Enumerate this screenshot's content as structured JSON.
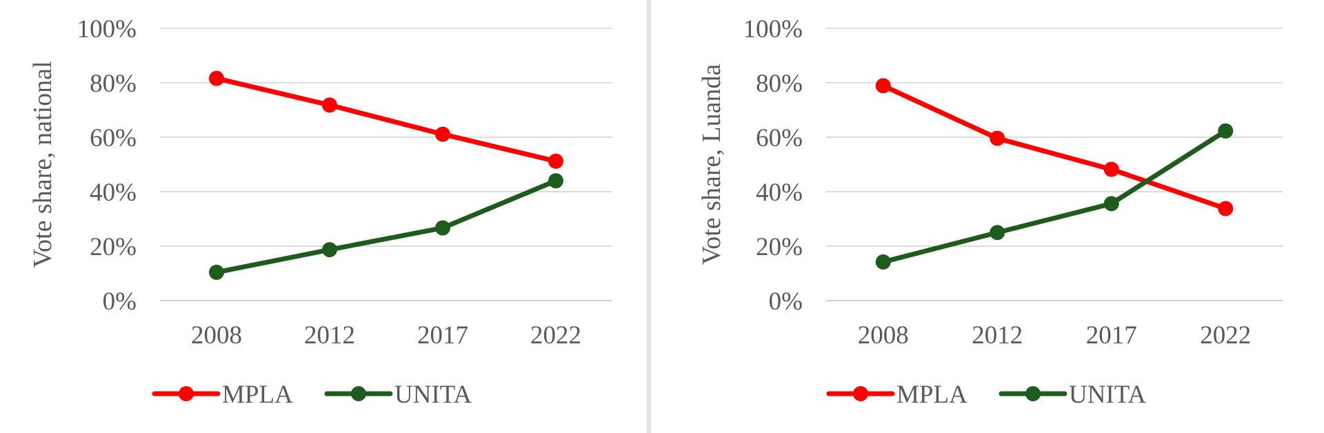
{
  "chart_data": [
    {
      "type": "line",
      "ylabel": "Vote share, national",
      "xlabel": "",
      "categories": [
        "2008",
        "2012",
        "2017",
        "2022"
      ],
      "ylim": [
        0,
        100
      ],
      "y_ticks": [
        "0%",
        "20%",
        "40%",
        "60%",
        "80%",
        "100%"
      ],
      "grid": true,
      "legend": "bottom",
      "series": [
        {
          "name": "MPLA",
          "color": "#ff0000",
          "values": [
            81.6,
            71.8,
            61.1,
            51.2
          ]
        },
        {
          "name": "UNITA",
          "color": "#1d5c1d",
          "values": [
            10.4,
            18.7,
            26.7,
            44.0
          ]
        }
      ]
    },
    {
      "type": "line",
      "ylabel": "Vote share, Luanda",
      "xlabel": "",
      "categories": [
        "2008",
        "2012",
        "2017",
        "2022"
      ],
      "ylim": [
        0,
        100
      ],
      "y_ticks": [
        "0%",
        "20%",
        "40%",
        "60%",
        "80%",
        "100%"
      ],
      "grid": true,
      "legend": "bottom",
      "series": [
        {
          "name": "MPLA",
          "color": "#ff0000",
          "values": [
            78.9,
            59.6,
            48.2,
            33.8
          ]
        },
        {
          "name": "UNITA",
          "color": "#1d5c1d",
          "values": [
            14.2,
            25.0,
            35.6,
            62.3
          ]
        }
      ]
    }
  ]
}
